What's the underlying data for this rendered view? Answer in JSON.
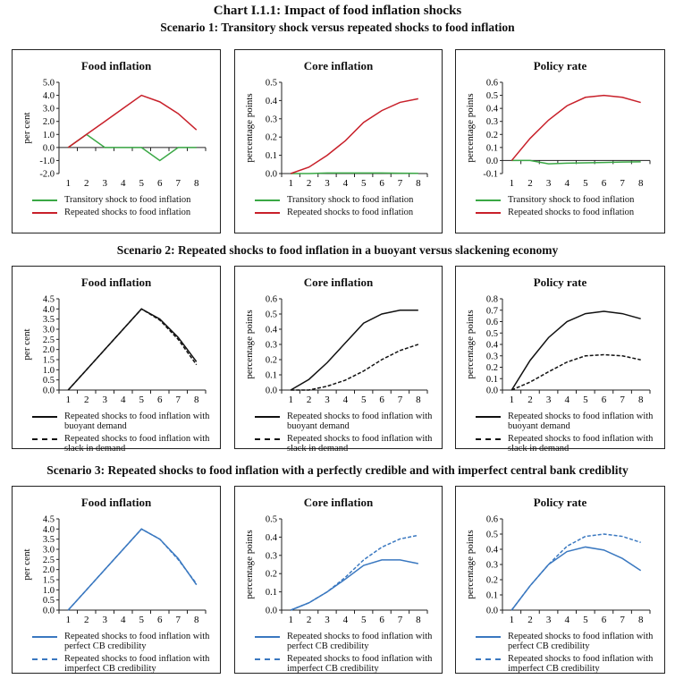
{
  "title": "Chart I.1.1: Impact of food inflation shocks",
  "scenarios": [
    "Scenario 1: Transitory shock versus repeated shocks to food inflation",
    "Scenario 2: Repeated shocks to food inflation in a buoyant versus slackening economy",
    "Scenario 3: Repeated shocks to food inflation with a perfectly credible and with imperfect central bank crediblity"
  ],
  "colors": {
    "transitory": "#3aa845",
    "repeated": "#c8202a",
    "black": "#111111",
    "blue": "#3a78c0"
  },
  "chart_data": [
    {
      "type": "line",
      "title": "Food inflation",
      "ylabel": "per cent",
      "categories": [
        1,
        2,
        3,
        4,
        5,
        6,
        7,
        8
      ],
      "ylim": [
        -2,
        5
      ],
      "ystep": 1,
      "ydec": 1,
      "series": [
        {
          "name": "Transitory shock to food inflation",
          "color": "#3aa845",
          "dash": false,
          "values": [
            0,
            1,
            0,
            0,
            0,
            -1,
            0,
            0
          ]
        },
        {
          "name": "Repeated shocks to food inflation",
          "color": "#c8202a",
          "dash": false,
          "values": [
            0,
            1,
            2,
            3,
            4,
            3.5,
            2.6,
            1.35
          ]
        }
      ]
    },
    {
      "type": "line",
      "title": "Core inflation",
      "ylabel": "percentage points",
      "categories": [
        1,
        2,
        3,
        4,
        5,
        6,
        7,
        8
      ],
      "ylim": [
        0,
        0.5
      ],
      "ystep": 0.1,
      "ydec": 1,
      "series": [
        {
          "name": "Transitory shock to food inflation",
          "color": "#3aa845",
          "dash": false,
          "values": [
            0,
            0,
            0.003,
            0.003,
            0.003,
            0.003,
            0.002,
            0.001
          ]
        },
        {
          "name": "Repeated shocks to food inflation",
          "color": "#c8202a",
          "dash": false,
          "values": [
            0,
            0.035,
            0.1,
            0.18,
            0.28,
            0.345,
            0.39,
            0.41
          ]
        }
      ]
    },
    {
      "type": "line",
      "title": "Policy rate",
      "ylabel": "percentage points",
      "categories": [
        1,
        2,
        3,
        4,
        5,
        6,
        7,
        8
      ],
      "ylim": [
        -0.1,
        0.6
      ],
      "ystep": 0.1,
      "ydec": 1,
      "series": [
        {
          "name": "Transitory shock to food inflation",
          "color": "#3aa845",
          "dash": false,
          "values": [
            0,
            0,
            -0.025,
            -0.02,
            -0.018,
            -0.015,
            -0.012,
            -0.01
          ]
        },
        {
          "name": "Repeated shocks to food inflation",
          "color": "#c8202a",
          "dash": false,
          "values": [
            0,
            0.17,
            0.31,
            0.42,
            0.485,
            0.5,
            0.485,
            0.445
          ]
        }
      ]
    },
    {
      "type": "line",
      "title": "Food inflation",
      "ylabel": "per cent",
      "categories": [
        1,
        2,
        3,
        4,
        5,
        6,
        7,
        8
      ],
      "ylim": [
        0,
        4.5
      ],
      "ystep": 0.5,
      "ydec": 1,
      "series": [
        {
          "name": "Repeated shocks to food inflation with buoyant demand",
          "color": "#111111",
          "dash": false,
          "values": [
            0,
            1,
            2,
            3,
            4,
            3.5,
            2.6,
            1.4
          ]
        },
        {
          "name": "Repeated shocks to food inflation with slack in demand",
          "color": "#111111",
          "dash": true,
          "values": [
            0,
            1,
            2,
            3,
            4,
            3.45,
            2.5,
            1.25
          ]
        }
      ]
    },
    {
      "type": "line",
      "title": "Core inflation",
      "ylabel": "percentage points",
      "categories": [
        1,
        2,
        3,
        4,
        5,
        6,
        7,
        8
      ],
      "ylim": [
        0,
        0.6
      ],
      "ystep": 0.1,
      "ydec": 1,
      "series": [
        {
          "name": "Repeated shocks to food inflation with buoyant demand",
          "color": "#111111",
          "dash": false,
          "values": [
            0,
            0.07,
            0.18,
            0.31,
            0.44,
            0.5,
            0.525,
            0.525
          ]
        },
        {
          "name": "Repeated shocks to food inflation with slack in demand",
          "color": "#111111",
          "dash": true,
          "values": [
            0,
            0,
            0.025,
            0.065,
            0.125,
            0.2,
            0.26,
            0.3
          ]
        }
      ]
    },
    {
      "type": "line",
      "title": "Policy rate",
      "ylabel": "percentage points",
      "categories": [
        1,
        2,
        3,
        4,
        5,
        6,
        7,
        8
      ],
      "ylim": [
        0,
        0.8
      ],
      "ystep": 0.1,
      "ydec": 1,
      "series": [
        {
          "name": "Repeated shocks to food inflation with buoyant demand",
          "color": "#111111",
          "dash": false,
          "values": [
            0,
            0.26,
            0.46,
            0.6,
            0.67,
            0.69,
            0.67,
            0.625
          ]
        },
        {
          "name": "Repeated shocks to food inflation with slack in demand",
          "color": "#111111",
          "dash": true,
          "values": [
            0,
            0.07,
            0.16,
            0.245,
            0.3,
            0.31,
            0.3,
            0.265
          ]
        }
      ]
    },
    {
      "type": "line",
      "title": "Food inflation",
      "ylabel": "per cent",
      "categories": [
        1,
        2,
        3,
        4,
        5,
        6,
        7,
        8
      ],
      "ylim": [
        0,
        4.5
      ],
      "ystep": 0.5,
      "ydec": 1,
      "series": [
        {
          "name": "Repeated shocks to food inflation with perfect CB credibility",
          "color": "#3a78c0",
          "dash": false,
          "values": [
            0,
            1,
            2,
            3,
            4,
            3.5,
            2.55,
            1.25
          ]
        },
        {
          "name": "Repeated shocks to food inflation with imperfect CB credibility",
          "color": "#3a78c0",
          "dash": true,
          "values": [
            0,
            1,
            2,
            3,
            4,
            3.5,
            2.5,
            1.3
          ]
        }
      ]
    },
    {
      "type": "line",
      "title": "Core inflation",
      "ylabel": "percentage points",
      "categories": [
        1,
        2,
        3,
        4,
        5,
        6,
        7,
        8
      ],
      "ylim": [
        0,
        0.5
      ],
      "ystep": 0.1,
      "ydec": 1,
      "series": [
        {
          "name": "Repeated shocks to food inflation with perfect CB credibility",
          "color": "#3a78c0",
          "dash": false,
          "values": [
            0,
            0.04,
            0.1,
            0.17,
            0.245,
            0.275,
            0.275,
            0.255
          ]
        },
        {
          "name": "Repeated shocks to food inflation with imperfect CB credibility",
          "color": "#3a78c0",
          "dash": true,
          "values": [
            0,
            0.04,
            0.1,
            0.18,
            0.275,
            0.345,
            0.39,
            0.41
          ]
        }
      ]
    },
    {
      "type": "line",
      "title": "Policy rate",
      "ylabel": "percentage points",
      "categories": [
        1,
        2,
        3,
        4,
        5,
        6,
        7,
        8
      ],
      "ylim": [
        0,
        0.6
      ],
      "ystep": 0.1,
      "ydec": 1,
      "series": [
        {
          "name": "Repeated shocks to food inflation with perfect CB credibility",
          "color": "#3a78c0",
          "dash": false,
          "values": [
            0,
            0.16,
            0.3,
            0.385,
            0.415,
            0.395,
            0.34,
            0.26
          ]
        },
        {
          "name": "Repeated shocks to food inflation with imperfect CB credibility",
          "color": "#3a78c0",
          "dash": true,
          "values": [
            0,
            0.16,
            0.3,
            0.42,
            0.485,
            0.5,
            0.485,
            0.445
          ]
        }
      ]
    }
  ]
}
